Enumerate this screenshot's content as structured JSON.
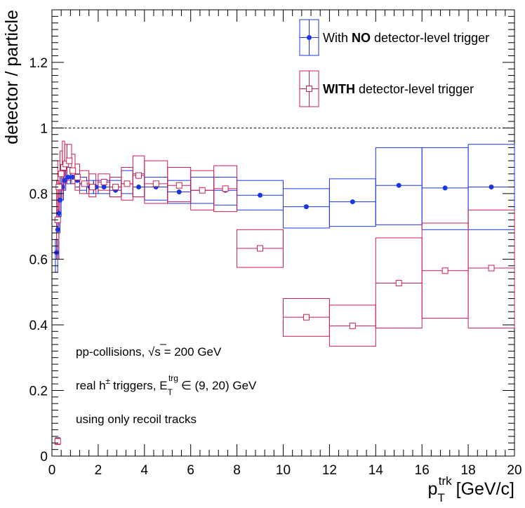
{
  "chart_data": {
    "type": "scatter",
    "xlabel": {
      "main": "p",
      "sub": "T",
      "sup": "trk",
      "unit": "[GeV/c]"
    },
    "ylabel": "detector / particle",
    "xlim": [
      0,
      20
    ],
    "ylim": [
      0,
      1.36
    ],
    "x_ticks": [
      "0",
      "2",
      "4",
      "6",
      "8",
      "10",
      "12",
      "14",
      "16",
      "18",
      "20"
    ],
    "y_ticks": [
      "0",
      "0.2",
      "0.4",
      "0.6",
      "0.8",
      "1",
      "1.2"
    ],
    "reference_line": 1.0,
    "grid": false,
    "legend_position": "top-right",
    "notes": {
      "line1_prefix": "pp-collisions,",
      "sqrt": "√s",
      "line1_suffix": "= 200 GeV",
      "line2_prefix": "real h",
      "line2_sup": "±",
      "line2_mid": "triggers, E",
      "line2_sub": "T",
      "line2_sup2": "trg",
      "line2_suffix": "∈ (9, 20) GeV",
      "line3": "using only recoil tracks"
    },
    "series": [
      {
        "name_prefix": "With",
        "name_bold": "NO",
        "name_suffix": "detector-level trigger",
        "color": "#1a36e6",
        "marker": "filled-circle",
        "points": [
          {
            "x": 0.25,
            "y": 0.048,
            "xlo": 0.15,
            "xhi": 0.35,
            "ylo": 0.04,
            "yhi": 0.056
          },
          {
            "x": 0.2,
            "y": 0.62,
            "xlo": 0.15,
            "xhi": 0.25,
            "ylo": 0.56,
            "yhi": 0.66
          },
          {
            "x": 0.25,
            "y": 0.69,
            "xlo": 0.2,
            "xhi": 0.3,
            "ylo": 0.6,
            "yhi": 0.75
          },
          {
            "x": 0.3,
            "y": 0.74,
            "xlo": 0.25,
            "xhi": 0.35,
            "ylo": 0.68,
            "yhi": 0.8
          },
          {
            "x": 0.35,
            "y": 0.78,
            "xlo": 0.3,
            "xhi": 0.4,
            "ylo": 0.73,
            "yhi": 0.83
          },
          {
            "x": 0.45,
            "y": 0.82,
            "xlo": 0.4,
            "xhi": 0.5,
            "ylo": 0.78,
            "yhi": 0.86
          },
          {
            "x": 0.55,
            "y": 0.84,
            "xlo": 0.5,
            "xhi": 0.6,
            "ylo": 0.81,
            "yhi": 0.87
          },
          {
            "x": 0.7,
            "y": 0.85,
            "xlo": 0.6,
            "xhi": 0.8,
            "ylo": 0.83,
            "yhi": 0.88
          },
          {
            "x": 0.9,
            "y": 0.85,
            "xlo": 0.8,
            "xhi": 1.0,
            "ylo": 0.83,
            "yhi": 0.87
          },
          {
            "x": 1.1,
            "y": 0.84,
            "xlo": 1.0,
            "xhi": 1.2,
            "ylo": 0.82,
            "yhi": 0.86
          },
          {
            "x": 1.35,
            "y": 0.83,
            "xlo": 1.2,
            "xhi": 1.5,
            "ylo": 0.81,
            "yhi": 0.85
          },
          {
            "x": 1.65,
            "y": 0.82,
            "xlo": 1.5,
            "xhi": 1.8,
            "ylo": 0.8,
            "yhi": 0.84
          },
          {
            "x": 1.9,
            "y": 0.82,
            "xlo": 1.8,
            "xhi": 2.0,
            "ylo": 0.8,
            "yhi": 0.84
          },
          {
            "x": 2.25,
            "y": 0.82,
            "xlo": 2.0,
            "xhi": 2.5,
            "ylo": 0.8,
            "yhi": 0.84
          },
          {
            "x": 2.75,
            "y": 0.81,
            "xlo": 2.5,
            "xhi": 3.0,
            "ylo": 0.79,
            "yhi": 0.84
          },
          {
            "x": 3.25,
            "y": 0.83,
            "xlo": 3.0,
            "xhi": 3.5,
            "ylo": 0.8,
            "yhi": 0.87
          },
          {
            "x": 3.75,
            "y": 0.82,
            "xlo": 3.5,
            "xhi": 4.0,
            "ylo": 0.79,
            "yhi": 0.86
          },
          {
            "x": 4.5,
            "y": 0.82,
            "xlo": 4.0,
            "xhi": 5.0,
            "ylo": 0.78,
            "yhi": 0.85
          },
          {
            "x": 5.5,
            "y": 0.805,
            "xlo": 5.0,
            "xhi": 6.0,
            "ylo": 0.77,
            "yhi": 0.84
          },
          {
            "x": 6.5,
            "y": 0.81,
            "xlo": 6.0,
            "xhi": 7.0,
            "ylo": 0.77,
            "yhi": 0.85
          },
          {
            "x": 7.5,
            "y": 0.81,
            "xlo": 7.0,
            "xhi": 8.0,
            "ylo": 0.765,
            "yhi": 0.85
          },
          {
            "x": 9,
            "y": 0.795,
            "xlo": 8.0,
            "xhi": 10.0,
            "ylo": 0.75,
            "yhi": 0.84
          },
          {
            "x": 11,
            "y": 0.76,
            "xlo": 10.0,
            "xhi": 12.0,
            "ylo": 0.695,
            "yhi": 0.815
          },
          {
            "x": 13,
            "y": 0.775,
            "xlo": 12.0,
            "xhi": 14.0,
            "ylo": 0.7,
            "yhi": 0.845
          },
          {
            "x": 15,
            "y": 0.825,
            "xlo": 14.0,
            "xhi": 16.0,
            "ylo": 0.705,
            "yhi": 0.94
          },
          {
            "x": 17,
            "y": 0.817,
            "xlo": 16.0,
            "xhi": 18.0,
            "ylo": 0.69,
            "yhi": 0.94
          },
          {
            "x": 19,
            "y": 0.82,
            "xlo": 18.0,
            "xhi": 20.0,
            "ylo": 0.69,
            "yhi": 0.95
          }
        ]
      },
      {
        "name_prefix": "",
        "name_bold": "WITH",
        "name_suffix": "detector-level trigger",
        "color": "#cc1f4d",
        "marker": "open-square",
        "points": [
          {
            "x": 0.25,
            "y": 0.045,
            "xlo": 0.15,
            "xhi": 0.35,
            "ylo": 0.035,
            "yhi": 0.055
          },
          {
            "x": 0.25,
            "y": 0.72,
            "xlo": 0.2,
            "xhi": 0.3,
            "ylo": 0.6,
            "yhi": 0.84
          },
          {
            "x": 0.3,
            "y": 0.82,
            "xlo": 0.25,
            "xhi": 0.35,
            "ylo": 0.74,
            "yhi": 0.9
          },
          {
            "x": 0.4,
            "y": 0.86,
            "xlo": 0.35,
            "xhi": 0.45,
            "ylo": 0.78,
            "yhi": 0.93
          },
          {
            "x": 0.5,
            "y": 0.88,
            "xlo": 0.45,
            "xhi": 0.55,
            "ylo": 0.81,
            "yhi": 0.96
          },
          {
            "x": 0.6,
            "y": 0.89,
            "xlo": 0.55,
            "xhi": 0.65,
            "ylo": 0.83,
            "yhi": 0.95
          },
          {
            "x": 0.75,
            "y": 0.9,
            "xlo": 0.65,
            "xhi": 0.85,
            "ylo": 0.84,
            "yhi": 0.95
          },
          {
            "x": 0.9,
            "y": 0.87,
            "xlo": 0.85,
            "xhi": 1.0,
            "ylo": 0.83,
            "yhi": 0.92
          },
          {
            "x": 1.1,
            "y": 0.85,
            "xlo": 1.0,
            "xhi": 1.2,
            "ylo": 0.81,
            "yhi": 0.89
          },
          {
            "x": 1.4,
            "y": 0.83,
            "xlo": 1.2,
            "xhi": 1.6,
            "ylo": 0.8,
            "yhi": 0.87
          },
          {
            "x": 1.75,
            "y": 0.82,
            "xlo": 1.6,
            "xhi": 1.9,
            "ylo": 0.79,
            "yhi": 0.86
          },
          {
            "x": 2.25,
            "y": 0.835,
            "xlo": 2.0,
            "xhi": 2.5,
            "ylo": 0.81,
            "yhi": 0.86
          },
          {
            "x": 2.75,
            "y": 0.82,
            "xlo": 2.5,
            "xhi": 3.0,
            "ylo": 0.79,
            "yhi": 0.85
          },
          {
            "x": 3.25,
            "y": 0.83,
            "xlo": 3.0,
            "xhi": 3.5,
            "ylo": 0.78,
            "yhi": 0.88
          },
          {
            "x": 3.75,
            "y": 0.855,
            "xlo": 3.5,
            "xhi": 4.0,
            "ylo": 0.79,
            "yhi": 0.915
          },
          {
            "x": 4.5,
            "y": 0.83,
            "xlo": 4.0,
            "xhi": 5.0,
            "ylo": 0.77,
            "yhi": 0.9
          },
          {
            "x": 5.5,
            "y": 0.825,
            "xlo": 5.0,
            "xhi": 6.0,
            "ylo": 0.775,
            "yhi": 0.88
          },
          {
            "x": 6.5,
            "y": 0.81,
            "xlo": 6.0,
            "xhi": 7.0,
            "ylo": 0.75,
            "yhi": 0.87
          },
          {
            "x": 7.5,
            "y": 0.815,
            "xlo": 7.0,
            "xhi": 8.0,
            "ylo": 0.745,
            "yhi": 0.885
          },
          {
            "x": 9,
            "y": 0.633,
            "xlo": 8.0,
            "xhi": 10.0,
            "ylo": 0.575,
            "yhi": 0.69
          },
          {
            "x": 11,
            "y": 0.423,
            "xlo": 10.0,
            "xhi": 12.0,
            "ylo": 0.365,
            "yhi": 0.48
          },
          {
            "x": 13,
            "y": 0.397,
            "xlo": 12.0,
            "xhi": 14.0,
            "ylo": 0.335,
            "yhi": 0.46
          },
          {
            "x": 15,
            "y": 0.527,
            "xlo": 14.0,
            "xhi": 16.0,
            "ylo": 0.39,
            "yhi": 0.665
          },
          {
            "x": 17,
            "y": 0.565,
            "xlo": 16.0,
            "xhi": 18.0,
            "ylo": 0.42,
            "yhi": 0.71
          },
          {
            "x": 19,
            "y": 0.573,
            "xlo": 18.0,
            "xhi": 20.0,
            "ylo": 0.39,
            "yhi": 0.75
          }
        ]
      }
    ]
  }
}
